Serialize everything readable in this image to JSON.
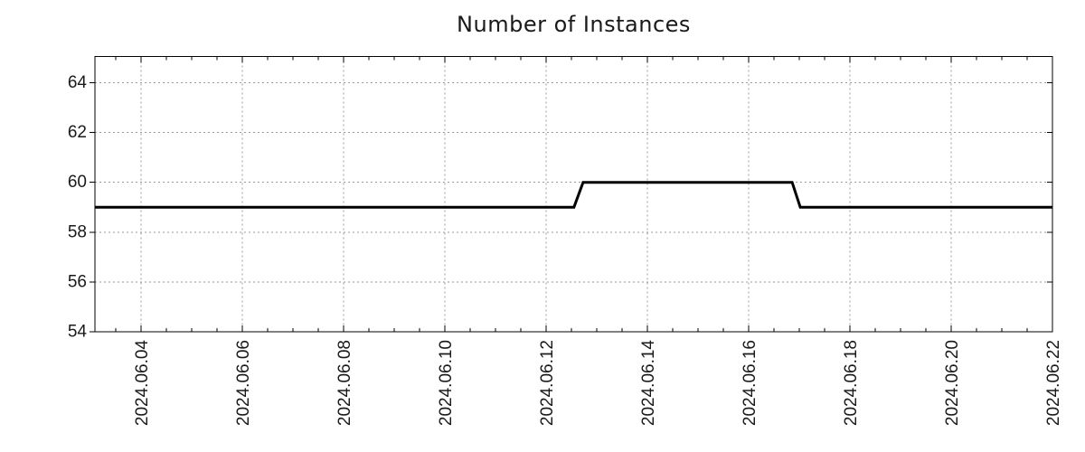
{
  "chart_data": {
    "type": "line",
    "title": "Number of Instances",
    "xlabel": "",
    "ylabel": "",
    "legend": "none",
    "x_axis": {
      "kind": "date",
      "major_ticks": [
        {
          "day": 4,
          "label": "2024.06.04"
        },
        {
          "day": 6,
          "label": "2024.06.06"
        },
        {
          "day": 8,
          "label": "2024.06.08"
        },
        {
          "day": 10,
          "label": "2024.06.10"
        },
        {
          "day": 12,
          "label": "2024.06.12"
        },
        {
          "day": 14,
          "label": "2024.06.14"
        },
        {
          "day": 16,
          "label": "2024.06.16"
        },
        {
          "day": 18,
          "label": "2024.06.18"
        },
        {
          "day": 20,
          "label": "2024.06.20"
        },
        {
          "day": 22,
          "label": "2024.06.22"
        }
      ],
      "minor_tick_step_days": 0.5,
      "xlim_days": [
        3.09,
        22.0
      ]
    },
    "y_axis": {
      "ticks": [
        {
          "value": 54,
          "label": "54"
        },
        {
          "value": 56,
          "label": "56"
        },
        {
          "value": 58,
          "label": "58"
        },
        {
          "value": 60,
          "label": "60"
        },
        {
          "value": 62,
          "label": "62"
        },
        {
          "value": 64,
          "label": "64"
        }
      ],
      "ylim": [
        54,
        65.05
      ]
    },
    "grid": {
      "show": true,
      "color": "#999999",
      "dash": "2 3"
    },
    "series": [
      {
        "name": "Number of Instances",
        "color": "#000000",
        "width": 3,
        "points_day_value": [
          [
            3.09,
            59
          ],
          [
            12.55,
            59
          ],
          [
            12.73,
            60
          ],
          [
            16.86,
            60
          ],
          [
            17.02,
            59
          ],
          [
            22.0,
            59
          ]
        ]
      }
    ],
    "colors": {
      "line": "#000000",
      "grid": "#999999",
      "axis": "#000000",
      "text": "#1a1a1a"
    }
  }
}
